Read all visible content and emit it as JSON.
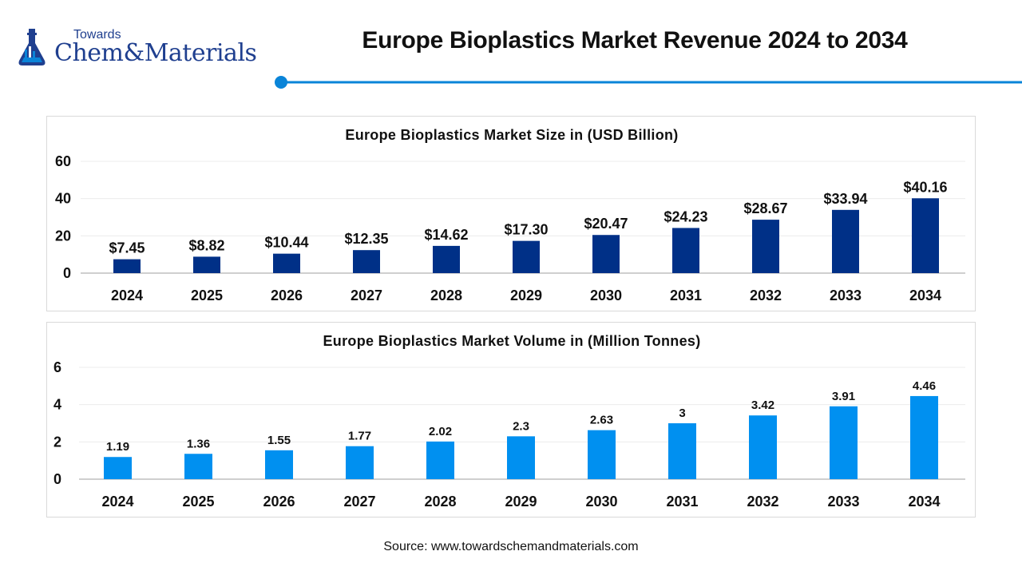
{
  "brand": {
    "small_text": "Towards",
    "name_part1": "Chem",
    "name_amp": "&",
    "name_part2": "Materials",
    "brand_color": "#1f3f8f"
  },
  "page_title": "Europe Bioplastics Market Revenue 2024 to 2034",
  "accent_color": "#0a84d8",
  "source": "Source: www.towardschemandmaterials.com",
  "chart_data": [
    {
      "type": "bar",
      "title": "Europe Bioplastics Market Size in (USD Billion)",
      "categories": [
        "2024",
        "2025",
        "2026",
        "2027",
        "2028",
        "2029",
        "2030",
        "2031",
        "2032",
        "2033",
        "2034"
      ],
      "values": [
        7.45,
        8.82,
        10.44,
        12.35,
        14.62,
        17.3,
        20.47,
        24.23,
        28.67,
        33.94,
        40.16
      ],
      "data_labels": [
        "$7.45",
        "$8.82",
        "$10.44",
        "$12.35",
        "$14.62",
        "$17.30",
        "$20.47",
        "$24.23",
        "$28.67",
        "$33.94",
        "$40.16"
      ],
      "yticks": [
        "0",
        "20",
        "40",
        "60"
      ],
      "ylim": [
        0,
        60
      ],
      "xlabel": "",
      "ylabel": "",
      "grid": true,
      "color": "#003087"
    },
    {
      "type": "bar",
      "title": "Europe Bioplastics Market Volume in (Million Tonnes)",
      "categories": [
        "2024",
        "2025",
        "2026",
        "2027",
        "2028",
        "2029",
        "2030",
        "2031",
        "2032",
        "2033",
        "2034"
      ],
      "values": [
        1.19,
        1.36,
        1.55,
        1.77,
        2.02,
        2.3,
        2.63,
        3,
        3.42,
        3.91,
        4.46
      ],
      "data_labels": [
        "1.19",
        "1.36",
        "1.55",
        "1.77",
        "2.02",
        "2.3",
        "2.63",
        "3",
        "3.42",
        "3.91",
        "4.46"
      ],
      "yticks": [
        "0",
        "2",
        "4",
        "6"
      ],
      "ylim": [
        0,
        6
      ],
      "xlabel": "",
      "ylabel": "",
      "grid": true,
      "color": "#0090f0"
    }
  ]
}
